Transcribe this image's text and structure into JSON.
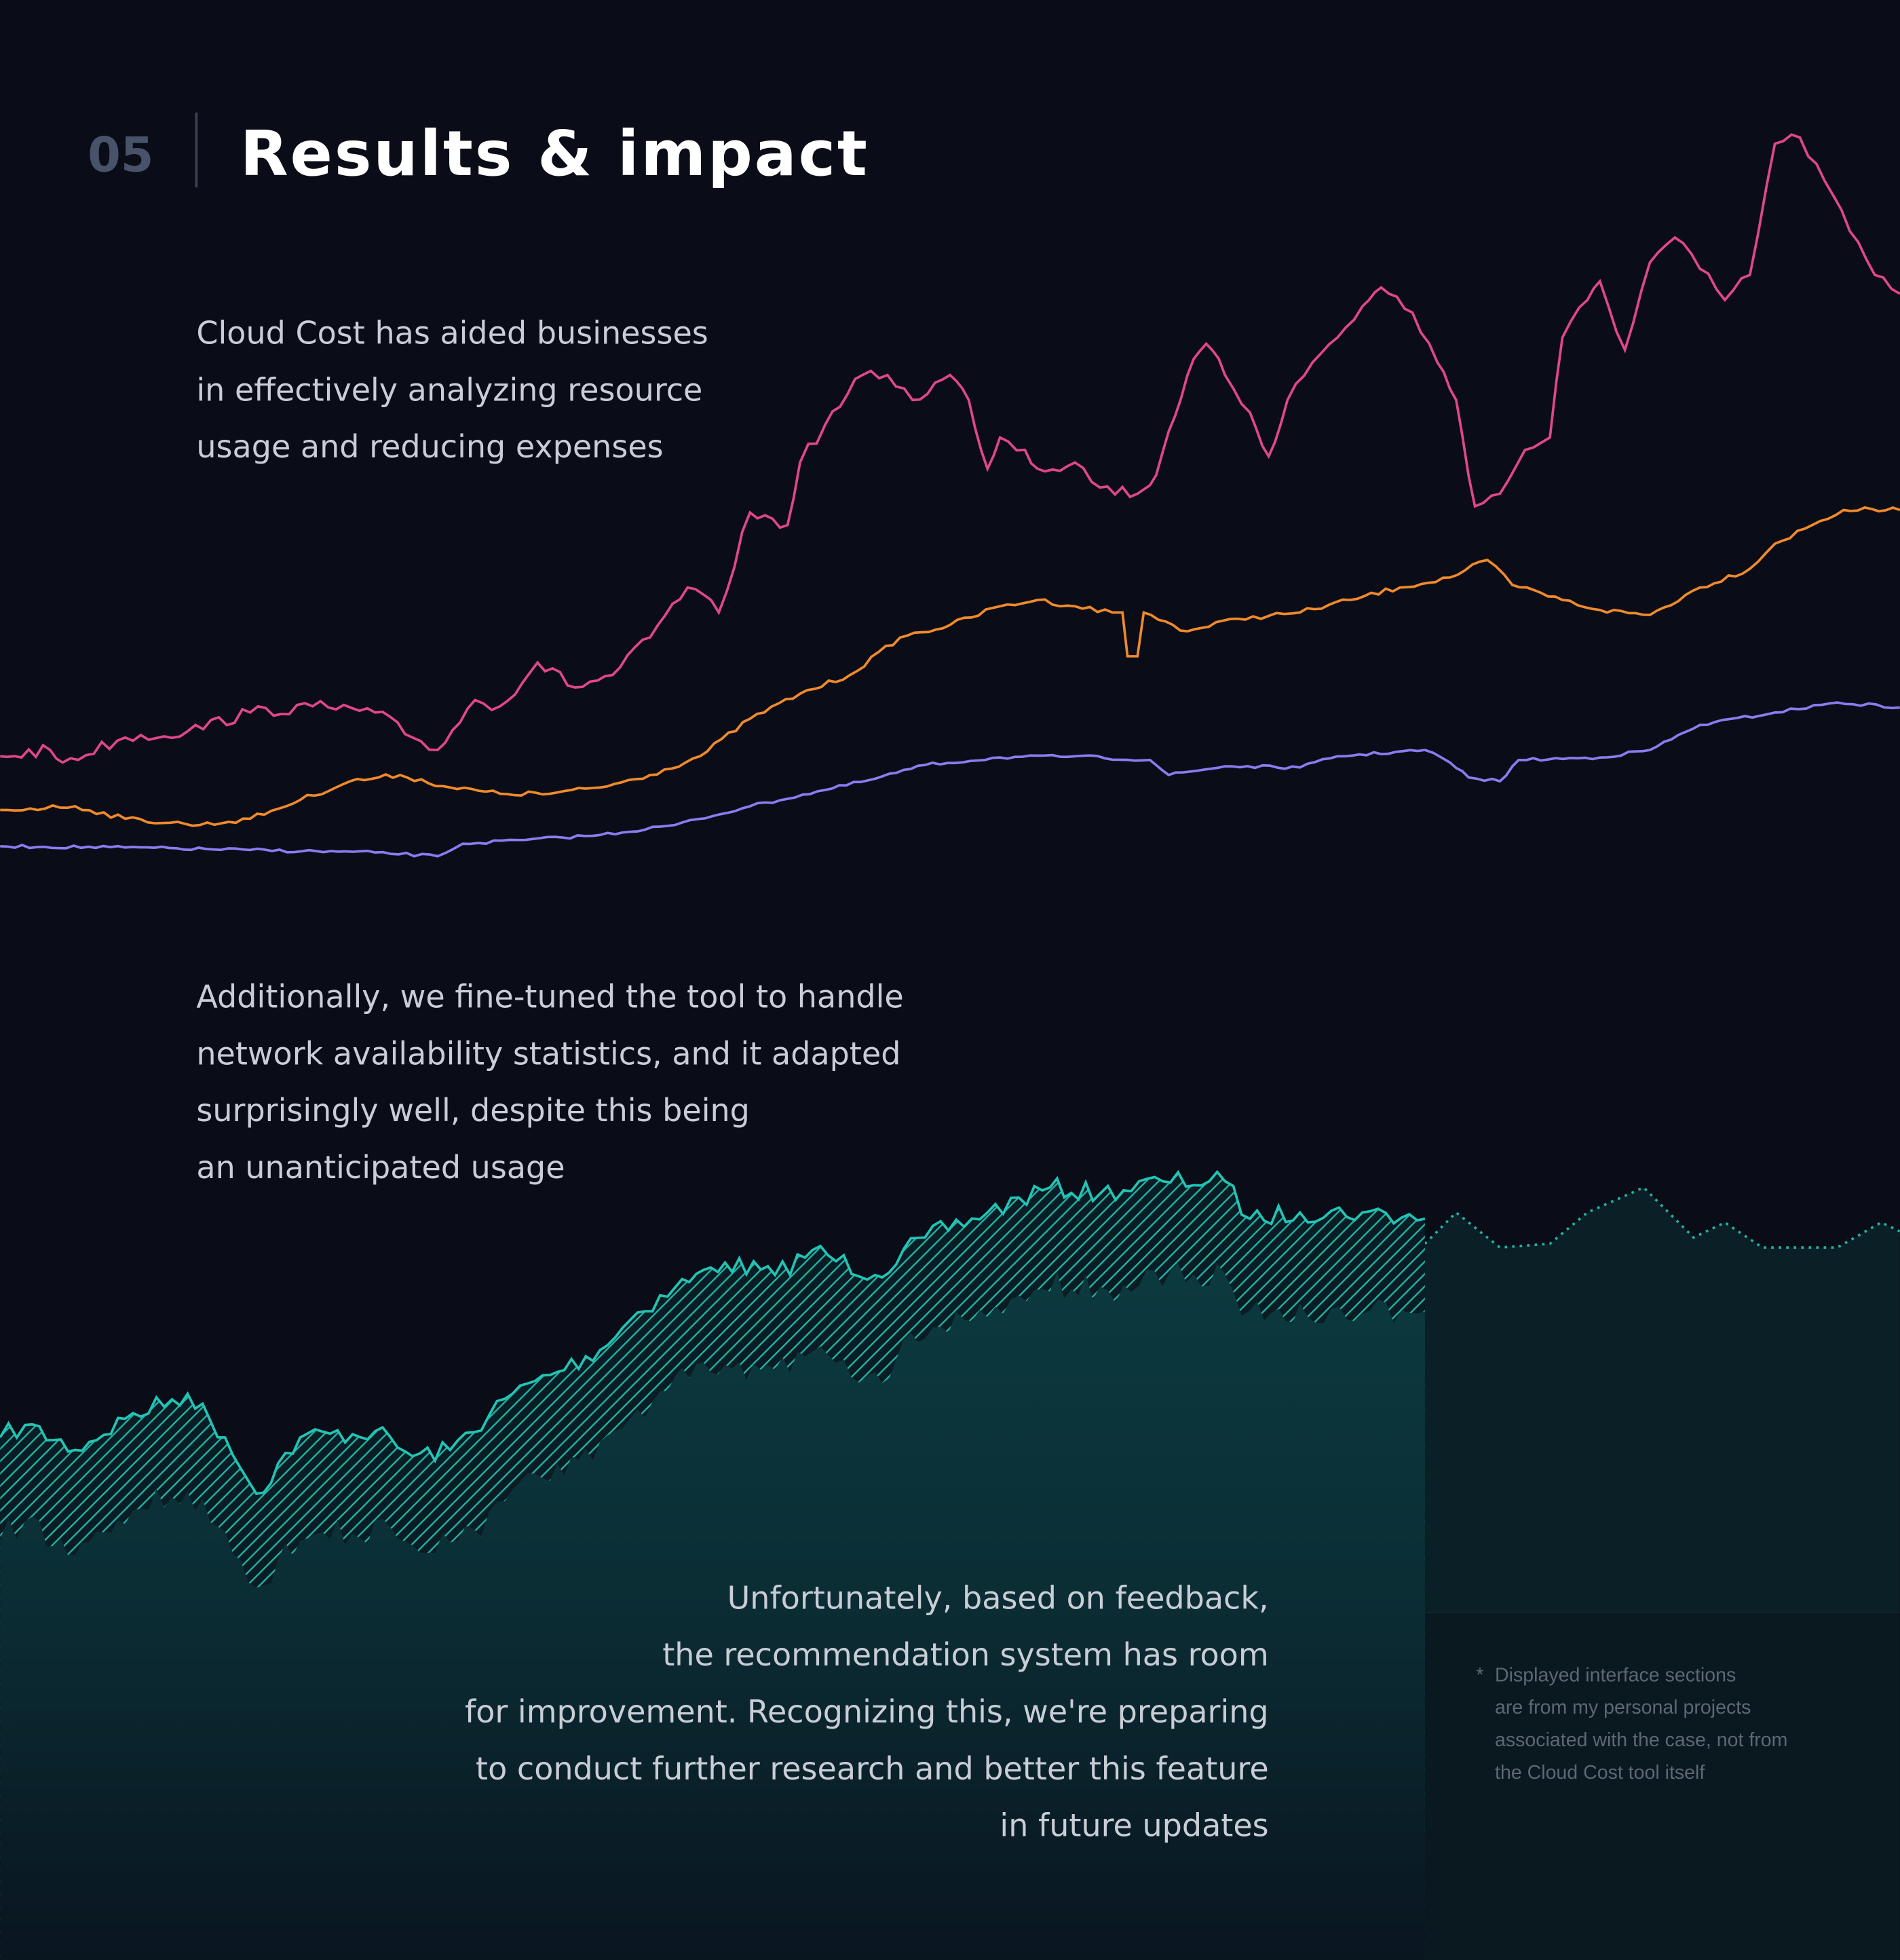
{
  "header": {
    "number": "05",
    "title": "Results & impact"
  },
  "paragraphs": [
    [
      "Cloud Cost has aided businesses",
      "in effectively analyzing resource",
      "usage and reducing expenses"
    ],
    [
      "Additionally, we fine-tuned the tool to handle",
      "network availability statistics, and it adapted",
      "surprisingly well, despite this being",
      "an unanticipated usage"
    ],
    [
      "Unfortunately, based on feedback,",
      "the recommendation system has room",
      "for improvement. Recognizing this, we're preparing",
      "to conduct further research and better this feature",
      "in future updates"
    ]
  ],
  "footnote": {
    "marker": "*",
    "lines": [
      "Displayed interface sections",
      "are from my personal projects",
      "associated with the case, not from",
      "the Cloud Cost tool itself"
    ]
  }
}
